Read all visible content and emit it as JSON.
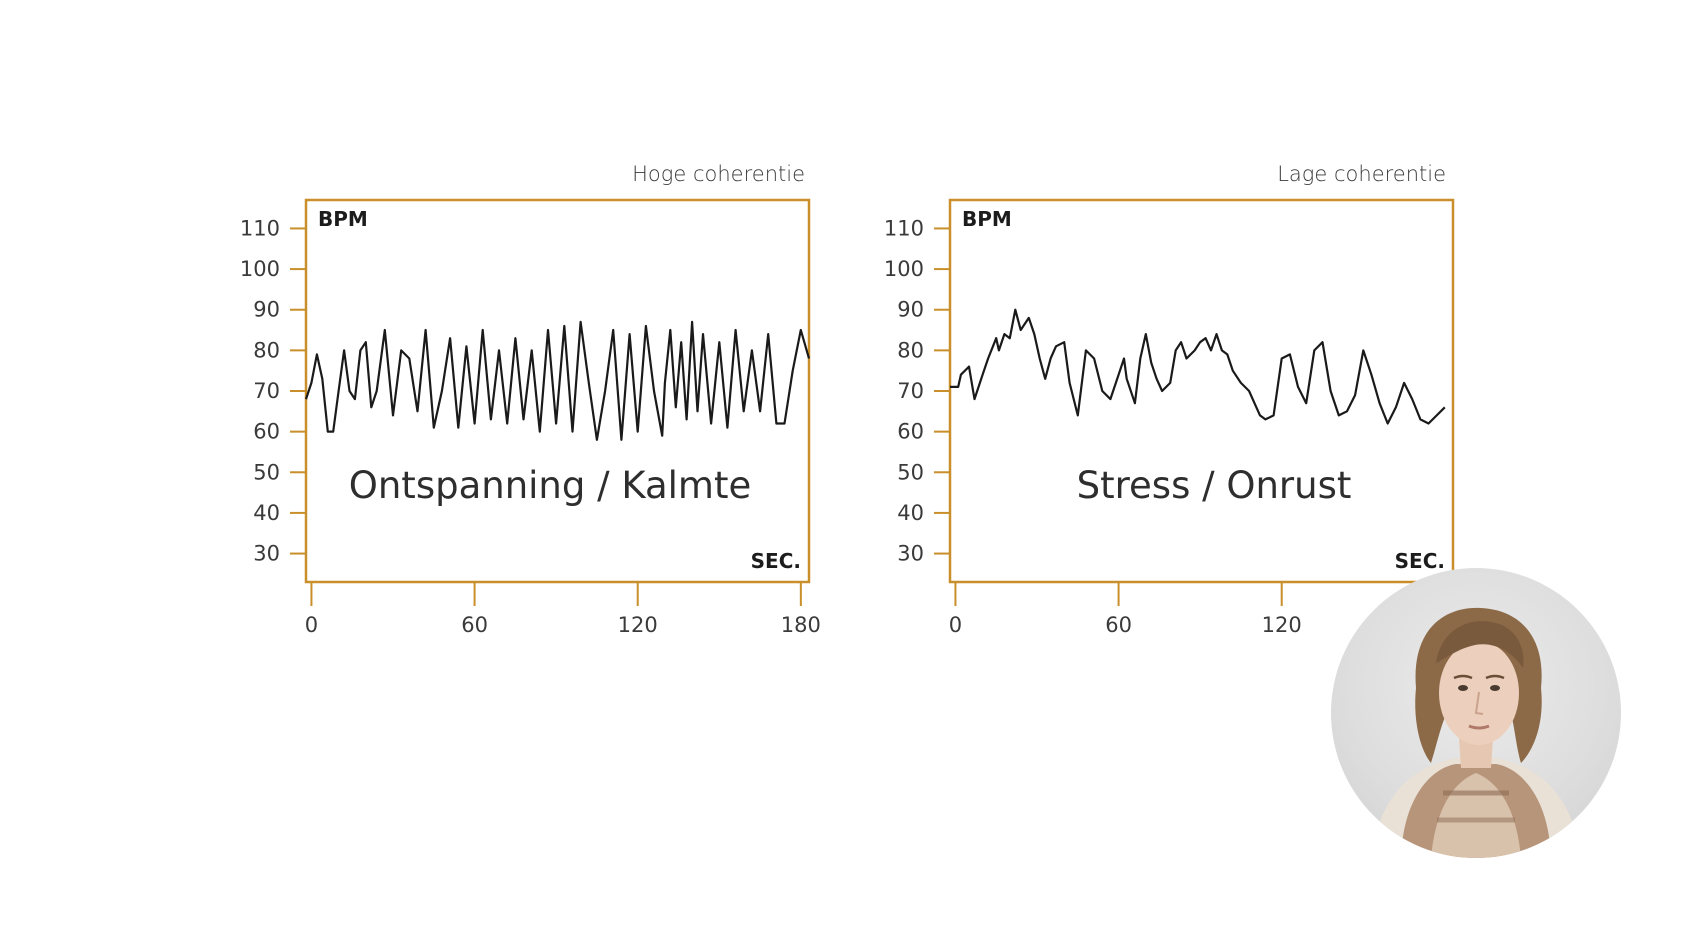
{
  "charts": [
    {
      "title": "Hoge coherentie",
      "caption": "Ontspanning / Kalmte",
      "y_unit": "BPM",
      "x_unit": "SEC.",
      "y_ticks": [
        "110",
        "100",
        "90",
        "80",
        "70",
        "60",
        "50",
        "40",
        "30"
      ],
      "x_ticks": [
        "0",
        "60",
        "120",
        "180"
      ]
    },
    {
      "title": "Lage coherentie",
      "caption": "Stress / Onrust",
      "y_unit": "BPM",
      "x_unit": "SEC.",
      "y_ticks": [
        "110",
        "100",
        "90",
        "80",
        "70",
        "60",
        "50",
        "40",
        "30"
      ],
      "x_ticks": [
        "0",
        "60",
        "120"
      ]
    }
  ],
  "chart_data": [
    {
      "type": "line",
      "title": "Hoge coherentie",
      "ylabel": "BPM",
      "xlabel": "SEC.",
      "xlim": [
        -2,
        183
      ],
      "ylim": [
        23,
        117
      ],
      "grid": false,
      "series": [
        {
          "x": [
            -2,
            0,
            2,
            4,
            6,
            8,
            10,
            12,
            14,
            16,
            18,
            20,
            22,
            24,
            27,
            30,
            33,
            36,
            39,
            42,
            45,
            48,
            51,
            54,
            57,
            60,
            63,
            66,
            69,
            72,
            75,
            78,
            81,
            84,
            87,
            90,
            93,
            96,
            99,
            102,
            105,
            108,
            111,
            114,
            117,
            120,
            123,
            126,
            129,
            130,
            132,
            134,
            136,
            138,
            140,
            142,
            144,
            147,
            150,
            153,
            156,
            159,
            162,
            165,
            168,
            171,
            174,
            177,
            180,
            183
          ],
          "y": [
            68,
            72,
            79,
            73,
            60,
            60,
            70,
            80,
            70,
            68,
            80,
            82,
            66,
            70,
            85,
            64,
            80,
            78,
            65,
            85,
            61,
            70,
            83,
            61,
            81,
            62,
            85,
            63,
            80,
            62,
            83,
            63,
            80,
            60,
            85,
            62,
            86,
            60,
            87,
            72,
            58,
            70,
            85,
            58,
            84,
            60,
            86,
            70,
            59,
            72,
            85,
            66,
            82,
            63,
            87,
            65,
            84,
            62,
            82,
            61,
            85,
            65,
            80,
            65,
            84,
            62,
            62,
            75,
            85,
            78
          ]
        }
      ]
    },
    {
      "type": "line",
      "title": "Lage coherentie",
      "ylabel": "BPM",
      "xlabel": "SEC.",
      "xlim": [
        -2,
        183
      ],
      "ylim": [
        23,
        117
      ],
      "grid": false,
      "series": [
        {
          "x": [
            -2,
            1,
            2,
            5,
            7,
            8,
            10,
            12,
            15,
            16,
            18,
            20,
            22,
            24,
            27,
            29,
            31,
            33,
            35,
            37,
            40,
            42,
            45,
            48,
            51,
            54,
            57,
            60,
            62,
            63,
            66,
            68,
            70,
            72,
            74,
            76,
            79,
            81,
            83,
            85,
            88,
            90,
            92,
            94,
            96,
            98,
            100,
            102,
            105,
            108,
            110,
            112,
            114,
            117,
            120,
            123,
            126,
            129,
            132,
            135,
            138,
            141,
            144,
            147,
            150,
            153,
            156,
            159,
            162,
            165,
            168,
            171,
            174,
            177,
            180
          ],
          "y": [
            71,
            71,
            74,
            76,
            68,
            70,
            74,
            78,
            83,
            80,
            84,
            83,
            90,
            85,
            88,
            84,
            78,
            73,
            78,
            81,
            82,
            72,
            64,
            80,
            78,
            70,
            68,
            74,
            78,
            73,
            67,
            78,
            84,
            77,
            73,
            70,
            72,
            80,
            82,
            78,
            80,
            82,
            83,
            80,
            84,
            80,
            79,
            75,
            72,
            70,
            67,
            64,
            63,
            64,
            78,
            79,
            71,
            67,
            80,
            82,
            70,
            64,
            65,
            69,
            80,
            74,
            67,
            62,
            66,
            72,
            68,
            63,
            62,
            64,
            66
          ]
        }
      ]
    }
  ]
}
